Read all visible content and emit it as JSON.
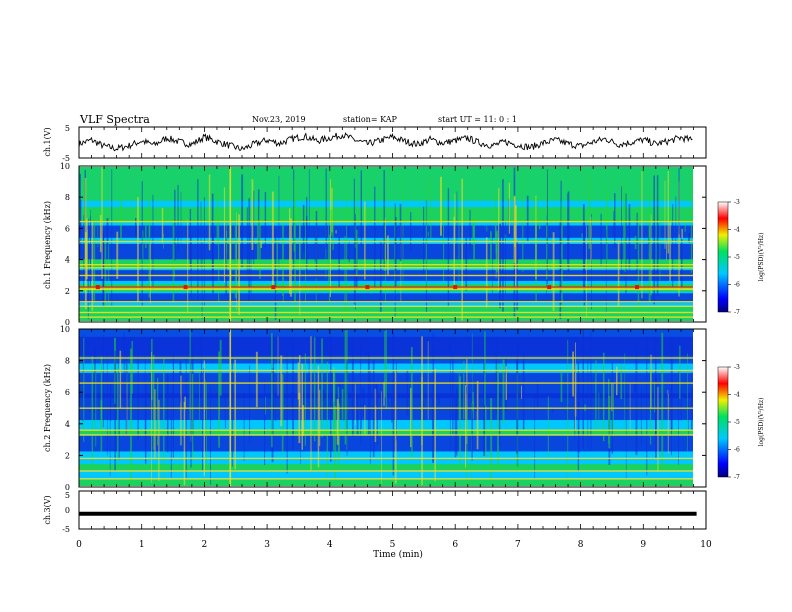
{
  "header": {
    "title": "VLF Spectra",
    "date": "Nov.23, 2019",
    "station": "station= KAP",
    "start_ut": "start  UT  =   11: 0  : 1"
  },
  "chart_data": [
    {
      "type": "line",
      "panel": "ch1-waveform",
      "ylabel": "ch.1(V)",
      "ylim": [
        -5,
        5
      ],
      "yticks": [
        "5",
        "-5"
      ],
      "xlim": [
        0,
        10
      ],
      "series": [
        {
          "x": [
            0.0,
            0.2,
            0.4,
            0.6,
            0.8,
            1.0,
            1.2,
            1.4,
            1.6,
            1.8,
            2.0,
            2.2,
            2.4,
            2.6,
            2.8,
            3.0,
            3.2,
            3.4,
            3.6,
            3.8,
            4.0,
            4.2,
            4.4,
            4.6,
            4.8,
            5.0,
            5.2,
            5.4,
            5.6,
            5.8,
            6.0,
            6.2,
            6.4,
            6.6,
            6.8,
            7.0,
            7.2,
            7.4,
            7.6,
            7.8,
            8.0,
            8.2,
            8.4,
            8.6,
            8.8,
            9.0,
            9.2,
            9.4,
            9.6,
            9.8
          ],
          "values": [
            -0.5,
            0.8,
            -1.2,
            -2.0,
            -1.0,
            0.5,
            -0.8,
            1.5,
            0.2,
            -0.6,
            1.8,
            0.3,
            -1.0,
            -2.2,
            -0.5,
            0.8,
            -0.3,
            1.2,
            2.0,
            0.5,
            1.5,
            2.5,
            0.8,
            -0.5,
            0.6,
            1.8,
            0.4,
            -0.6,
            1.0,
            -0.2,
            0.6,
            1.4,
            -0.2,
            -1.0,
            0.2,
            -0.8,
            -1.6,
            -0.2,
            0.8,
            -0.4,
            -1.2,
            0.2,
            1.2,
            -0.6,
            0.0,
            0.9,
            -0.5,
            0.4,
            1.6,
            0.6
          ]
        }
      ]
    },
    {
      "type": "heatmap",
      "panel": "ch1-spectrogram",
      "ylabel": "ch.1 Frequency (kHz)",
      "ylim": [
        0,
        10
      ],
      "yticks": [
        "0",
        "2",
        "4",
        "6",
        "8",
        "10"
      ],
      "xlim": [
        0,
        10
      ],
      "colorbar": {
        "label": "log(PSD)(V²/Hz)",
        "ticks": [
          "-3",
          "-4",
          "-5",
          "-6",
          "-7"
        ],
        "range": [
          -7,
          -3
        ]
      },
      "features": {
        "background_low_band": [
          -5.0,
          -6.5
        ],
        "band_lines_khz": [
          0.3,
          0.6,
          1.0,
          1.3,
          2.1,
          2.2,
          3.0,
          3.5,
          3.7,
          5.2,
          6.5
        ],
        "red_markers_khz": 2.2,
        "red_markers_min": [
          0.3,
          1.7,
          3.1,
          4.6,
          6.0,
          7.5,
          8.9
        ]
      }
    },
    {
      "type": "heatmap",
      "panel": "ch2-spectrogram",
      "ylabel": "ch.2 Frequency (kHz)",
      "ylim": [
        0,
        10
      ],
      "yticks": [
        "0",
        "2",
        "4",
        "6",
        "8",
        "10"
      ],
      "xlim": [
        0,
        10
      ],
      "colorbar": {
        "label": "log(PSD)(V²/Hz)",
        "ticks": [
          "-3",
          "-4",
          "-5",
          "-6",
          "-7"
        ],
        "range": [
          -7,
          -3
        ]
      },
      "features": {
        "band_lines_khz": [
          0.5,
          1.0,
          1.8,
          3.3,
          3.6,
          5.0,
          6.6,
          7.4,
          8.2
        ]
      }
    },
    {
      "type": "line",
      "panel": "ch3-waveform",
      "ylabel": "ch.3(V)",
      "ylim": [
        -5,
        5
      ],
      "yticks": [
        "5",
        "0",
        "-5"
      ],
      "xlim": [
        0,
        10
      ],
      "series": [
        {
          "x": [
            0,
            9.85
          ],
          "values": [
            -1.0,
            -1.0
          ]
        }
      ]
    }
  ],
  "xaxis": {
    "label": "Time (min)",
    "ticks": [
      "0",
      "1",
      "2",
      "3",
      "4",
      "5",
      "6",
      "7",
      "8",
      "9",
      "10"
    ]
  },
  "colors": {
    "spectro_low": "#0a2fd8",
    "spectro_mid": "#00c8ff",
    "spectro_high": "#22d43a",
    "spectro_peak": "#f0e020",
    "spectro_max": "#e01010"
  }
}
